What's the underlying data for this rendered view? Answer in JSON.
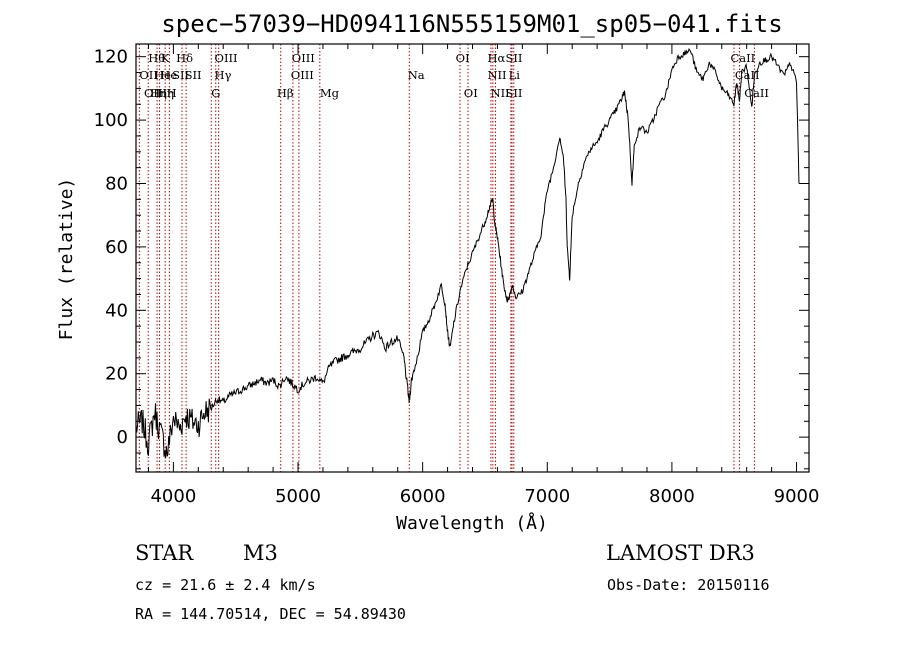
{
  "chart_data": {
    "type": "line",
    "title": "spec−57039−HD094116N555159M01_sp05−041.fits",
    "xlabel": "Wavelength (Å)",
    "ylabel": "Flux (relative)",
    "xlim": [
      3700,
      9100
    ],
    "ylim": [
      -11,
      124
    ],
    "xticks": [
      4000,
      5000,
      6000,
      7000,
      8000,
      9000
    ],
    "xtick_labels": [
      "4000",
      "5000",
      "6000",
      "7000",
      "8000",
      "9000"
    ],
    "yticks": [
      0,
      20,
      40,
      60,
      80,
      100,
      120
    ],
    "ytick_labels": [
      "0",
      "20",
      "40",
      "60",
      "80",
      "100",
      "120"
    ],
    "grid": false,
    "series": [
      {
        "name": "spectrum",
        "x": [
          3700,
          3750,
          3800,
          3850,
          3900,
          3950,
          4000,
          4050,
          4100,
          4150,
          4200,
          4250,
          4300,
          4350,
          4400,
          4450,
          4500,
          4550,
          4600,
          4650,
          4700,
          4750,
          4800,
          4850,
          4900,
          4950,
          5000,
          5050,
          5100,
          5150,
          5200,
          5250,
          5300,
          5350,
          5400,
          5450,
          5500,
          5550,
          5600,
          5650,
          5700,
          5750,
          5800,
          5850,
          5880,
          5893,
          5910,
          5950,
          6000,
          6050,
          6100,
          6150,
          6180,
          6200,
          6220,
          6250,
          6300,
          6350,
          6400,
          6450,
          6500,
          6540,
          6563,
          6580,
          6600,
          6620,
          6650,
          6680,
          6700,
          6720,
          6750,
          6800,
          6850,
          6900,
          6950,
          7000,
          7050,
          7100,
          7130,
          7150,
          7160,
          7180,
          7200,
          7250,
          7300,
          7350,
          7400,
          7450,
          7500,
          7550,
          7600,
          7620,
          7650,
          7680,
          7700,
          7750,
          7800,
          7850,
          7900,
          7950,
          8000,
          8050,
          8100,
          8150,
          8200,
          8250,
          8300,
          8350,
          8400,
          8450,
          8498,
          8520,
          8542,
          8560,
          8600,
          8640,
          8662,
          8700,
          8750,
          8800,
          8850,
          8900,
          8950,
          9000,
          9020
        ],
        "y": [
          3,
          5,
          -2,
          8,
          1,
          -5,
          6,
          3,
          7,
          5,
          4,
          8,
          9,
          12,
          11,
          13,
          14,
          15,
          16,
          17,
          18,
          17,
          18,
          16,
          19,
          17,
          15,
          17,
          18,
          19,
          17,
          22,
          24,
          25,
          26,
          27,
          28,
          30,
          32,
          33,
          28,
          30,
          31,
          25,
          15,
          11,
          18,
          24,
          33,
          37,
          42,
          48,
          42,
          33,
          28,
          36,
          46,
          53,
          58,
          63,
          68,
          73,
          75,
          67,
          63,
          57,
          48,
          43,
          45,
          48,
          44,
          46,
          52,
          58,
          64,
          78,
          85,
          95,
          88,
          75,
          60,
          50,
          70,
          80,
          87,
          91,
          93,
          97,
          100,
          103,
          107,
          109,
          100,
          80,
          93,
          98,
          96,
          100,
          105,
          108,
          116,
          120,
          121,
          122,
          115,
          113,
          118,
          115,
          110,
          108,
          105,
          112,
          106,
          115,
          117,
          104,
          114,
          118,
          119,
          120,
          117,
          114,
          118,
          112,
          80
        ]
      }
    ],
    "spectral_lines": [
      {
        "wavelength": 3727,
        "label": "OII"
      },
      {
        "wavelength": 3798,
        "label": "Hη"
      },
      {
        "wavelength": 3869,
        "label": "He"
      },
      {
        "wavelength": 3889,
        "label": "Hζ"
      },
      {
        "wavelength": 3934,
        "label": "K"
      },
      {
        "wavelength": 3968,
        "label": "H"
      },
      {
        "wavelength": 4069,
        "label": "SII"
      },
      {
        "wavelength": 4102,
        "label": "Hδ"
      },
      {
        "wavelength": 4304,
        "label": "G"
      },
      {
        "wavelength": 4340,
        "label": "Hγ"
      },
      {
        "wavelength": 4363,
        "label": "OIII"
      },
      {
        "wavelength": 4861,
        "label": "Hβ"
      },
      {
        "wavelength": 4959,
        "label": "OIII"
      },
      {
        "wavelength": 5007,
        "label": "OIII"
      },
      {
        "wavelength": 5175,
        "label": "Mg"
      },
      {
        "wavelength": 5893,
        "label": "Na"
      },
      {
        "wavelength": 6300,
        "label": "OI"
      },
      {
        "wavelength": 6364,
        "label": "OI"
      },
      {
        "wavelength": 6548,
        "label": "NII"
      },
      {
        "wavelength": 6563,
        "label": "Hα"
      },
      {
        "wavelength": 6584,
        "label": "NII"
      },
      {
        "wavelength": 6708,
        "label": "Li"
      },
      {
        "wavelength": 6717,
        "label": "SII"
      },
      {
        "wavelength": 6731,
        "label": "SII"
      },
      {
        "wavelength": 8498,
        "label": "CaII"
      },
      {
        "wavelength": 8542,
        "label": "CaII"
      },
      {
        "wavelength": 8662,
        "label": "CaII"
      }
    ],
    "line_label_glyphs": [
      {
        "wavelength": 3727,
        "row": 1,
        "text": "OII"
      },
      {
        "wavelength": 3764,
        "row": 2,
        "text": "OII"
      },
      {
        "wavelength": 3798,
        "row": 0,
        "text": "Hθ"
      },
      {
        "wavelength": 3812,
        "row": 2,
        "text": "Hη"
      },
      {
        "wavelength": 3845,
        "row": 1,
        "text": "He"
      },
      {
        "wavelength": 3868,
        "row": 2,
        "text": "Hη"
      },
      {
        "wavelength": 3895,
        "row": 1,
        "text": "He"
      },
      {
        "wavelength": 3900,
        "row": 0,
        "text": "K"
      },
      {
        "wavelength": 3946,
        "row": 2,
        "text": "H"
      },
      {
        "wavelength": 3990,
        "row": 1,
        "text": "SII"
      },
      {
        "wavelength": 4022,
        "row": 0,
        "text": "Hδ"
      },
      {
        "wavelength": 4090,
        "row": 1,
        "text": "SII"
      },
      {
        "wavelength": 4304,
        "row": 2,
        "text": "G"
      },
      {
        "wavelength": 4330,
        "row": 0,
        "text": "OIII"
      },
      {
        "wavelength": 4330,
        "row": 1,
        "text": "Hγ"
      },
      {
        "wavelength": 4830,
        "row": 2,
        "text": "Hβ"
      },
      {
        "wavelength": 4950,
        "row": 0,
        "text": "OIII"
      },
      {
        "wavelength": 4942,
        "row": 1,
        "text": "OIII"
      },
      {
        "wavelength": 5175,
        "row": 2,
        "text": "Mg"
      },
      {
        "wavelength": 5880,
        "row": 1,
        "text": "Na"
      },
      {
        "wavelength": 6265,
        "row": 0,
        "text": "OI"
      },
      {
        "wavelength": 6330,
        "row": 2,
        "text": "OI"
      },
      {
        "wavelength": 6520,
        "row": 0,
        "text": "Hα"
      },
      {
        "wavelength": 6520,
        "row": 1,
        "text": "NII"
      },
      {
        "wavelength": 6545,
        "row": 2,
        "text": "NII"
      },
      {
        "wavelength": 6665,
        "row": 0,
        "text": "SII"
      },
      {
        "wavelength": 6690,
        "row": 1,
        "text": "Li"
      },
      {
        "wavelength": 6665,
        "row": 2,
        "text": "SII"
      },
      {
        "wavelength": 8470,
        "row": 0,
        "text": "CaII"
      },
      {
        "wavelength": 8505,
        "row": 1,
        "text": "CaII"
      },
      {
        "wavelength": 8580,
        "row": 2,
        "text": "CaII"
      }
    ]
  },
  "info": {
    "object_class": "STAR",
    "subclass": "M3",
    "survey": "LAMOST DR3",
    "cz": "cz = 21.6 ± 2.4 km/s",
    "obs_date": "Obs-Date: 20150116",
    "coords": "RA = 144.70514, DEC =  54.89430"
  }
}
